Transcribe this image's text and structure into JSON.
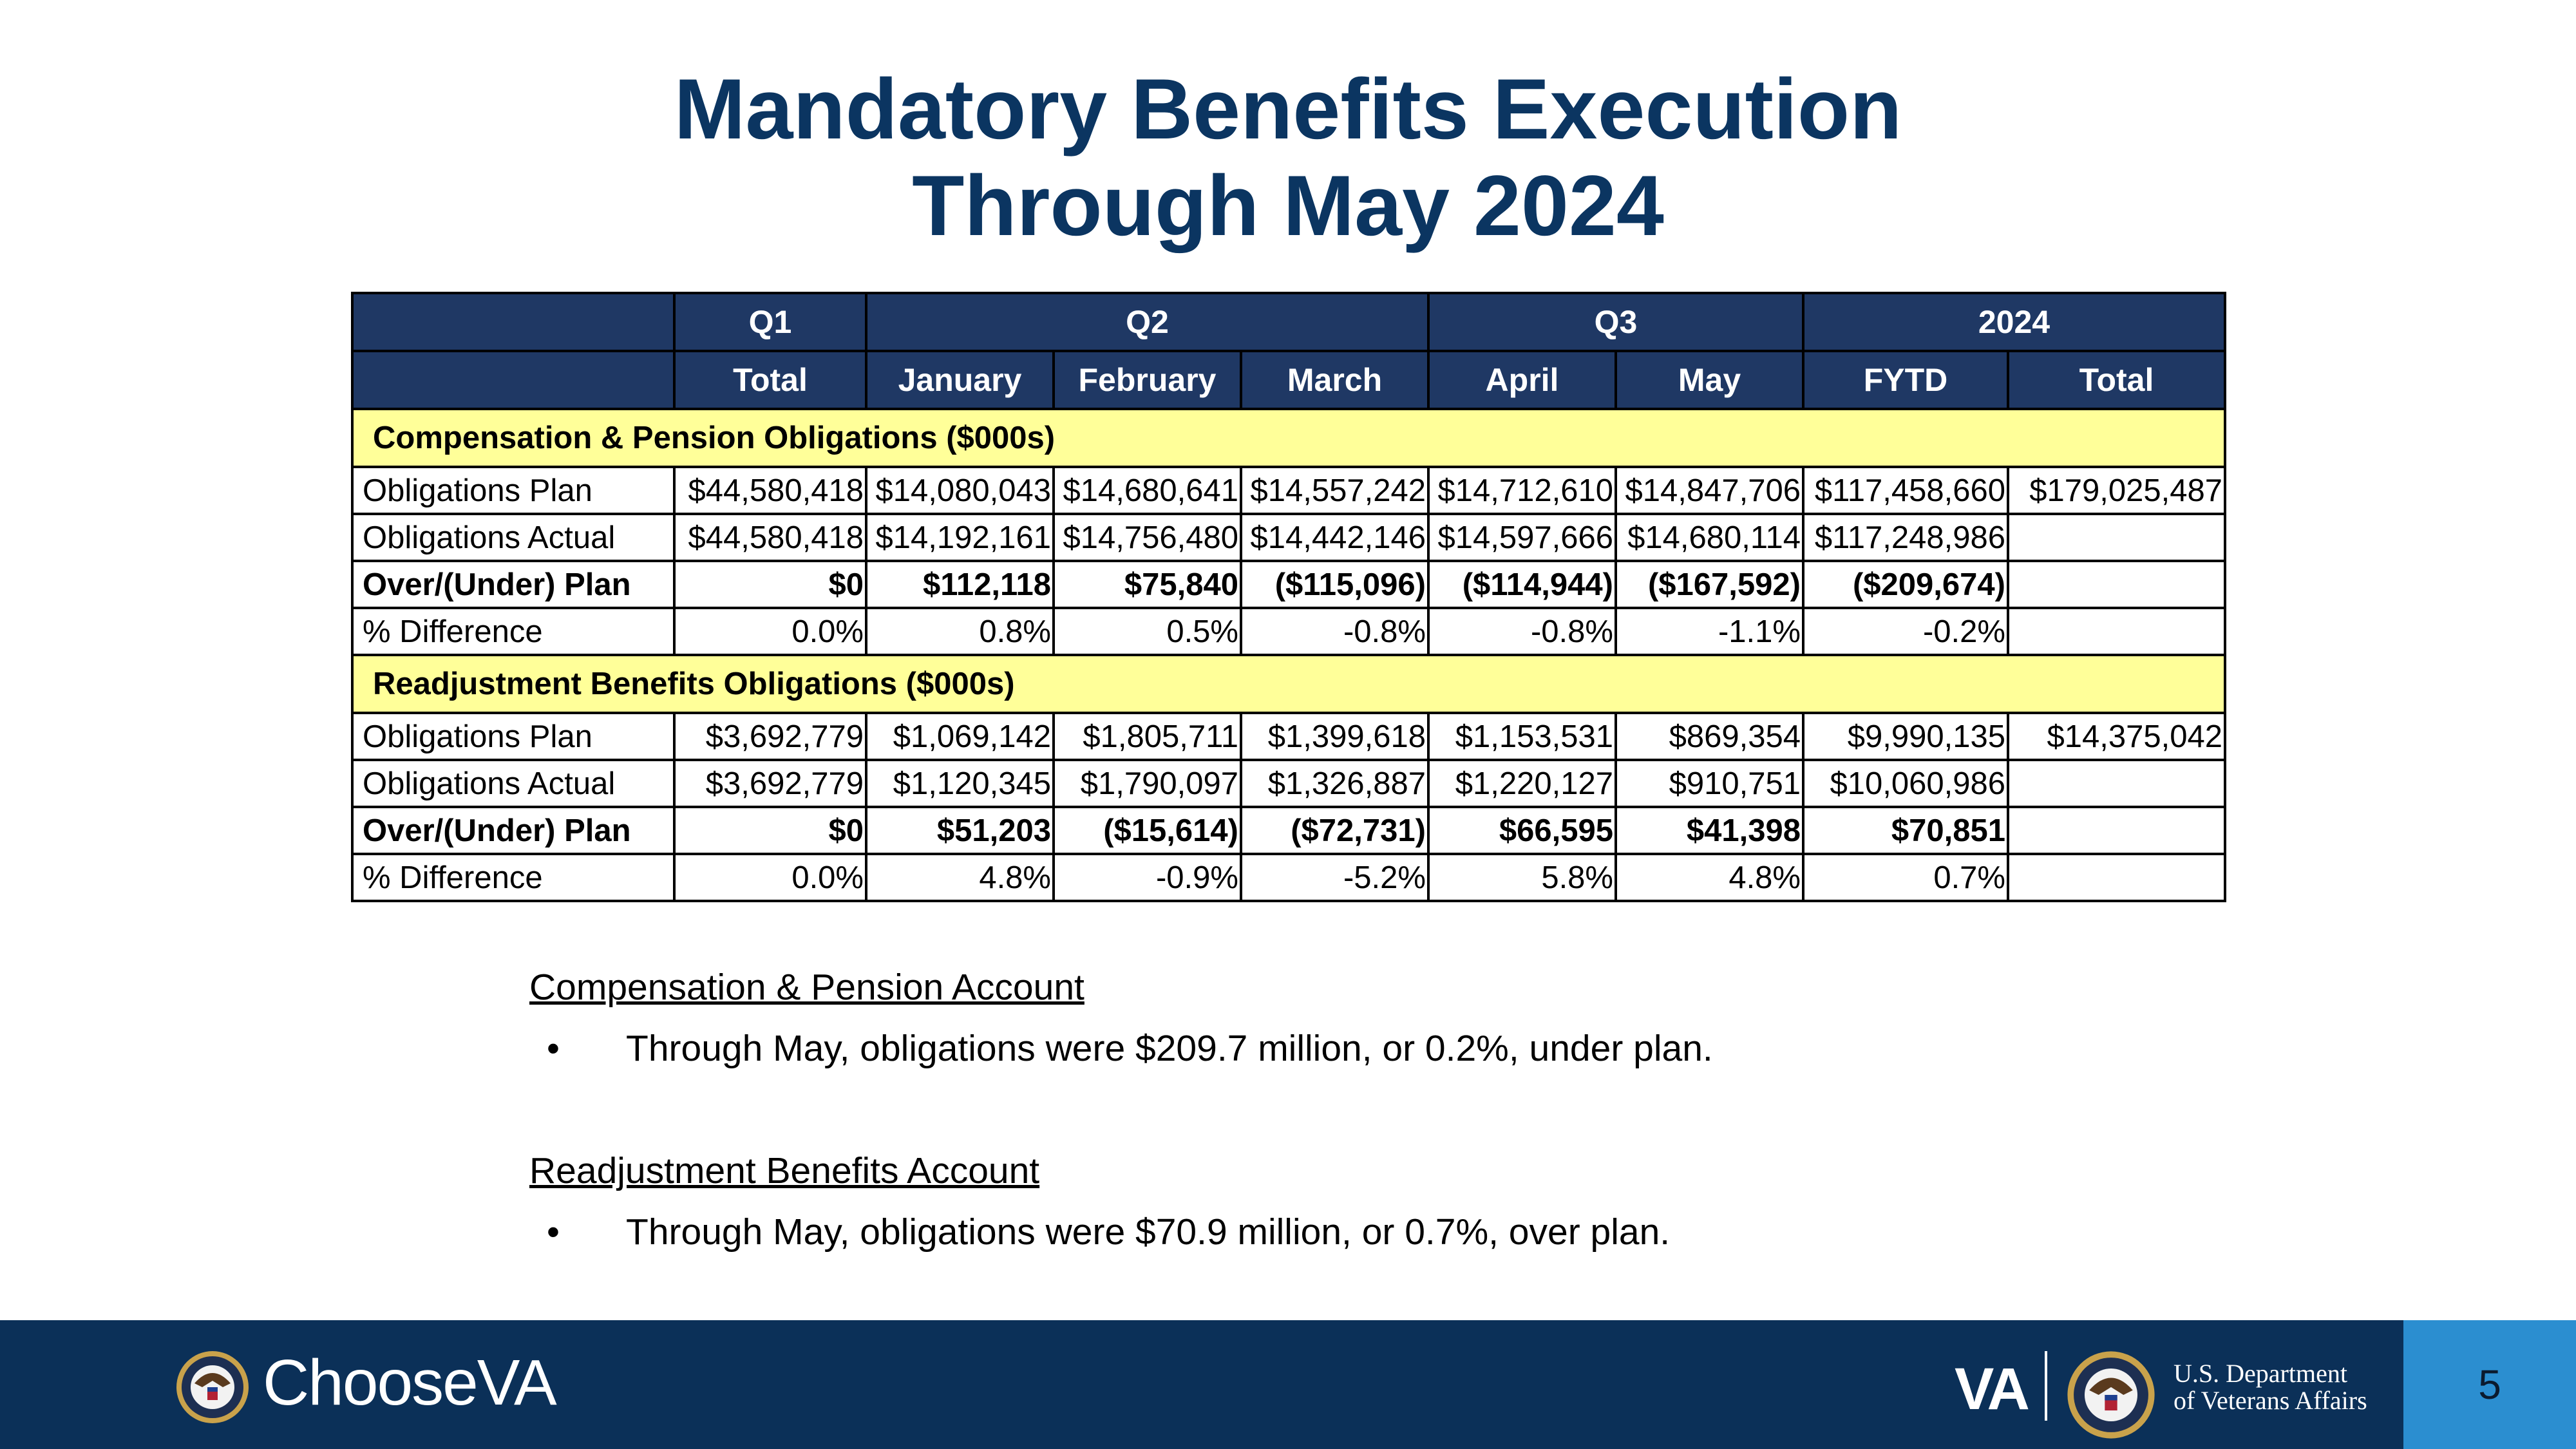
{
  "title": {
    "line1": "Mandatory Benefits Execution",
    "line2": "Through May 2024"
  },
  "table": {
    "header_row1": [
      "",
      "Q1",
      "Q2",
      "Q3",
      "2024"
    ],
    "header_row2": [
      "",
      "Total",
      "January",
      "February",
      "March",
      "April",
      "May",
      "FYTD",
      "Total"
    ],
    "sections": [
      {
        "title": "Compensation & Pension Obligations ($000s)",
        "rows": [
          {
            "label": "Obligations Plan",
            "bold": false,
            "cells": [
              "$44,580,418",
              "$14,080,043",
              "$14,680,641",
              "$14,557,242",
              "$14,712,610",
              "$14,847,706",
              "$117,458,660",
              "$179,025,487"
            ]
          },
          {
            "label": "Obligations Actual",
            "bold": false,
            "cells": [
              "$44,580,418",
              "$14,192,161",
              "$14,756,480",
              "$14,442,146",
              "$14,597,666",
              "$14,680,114",
              "$117,248,986",
              ""
            ]
          },
          {
            "label": "Over/(Under) Plan",
            "bold": true,
            "cells": [
              "$0",
              "$112,118",
              "$75,840",
              "($115,096)",
              "($114,944)",
              "($167,592)",
              "($209,674)",
              ""
            ]
          },
          {
            "label": "% Difference",
            "bold": false,
            "cells": [
              "0.0%",
              "0.8%",
              "0.5%",
              "-0.8%",
              "-0.8%",
              "-1.1%",
              "-0.2%",
              ""
            ]
          }
        ]
      },
      {
        "title": "Readjustment Benefits Obligations ($000s)",
        "rows": [
          {
            "label": "Obligations Plan",
            "bold": false,
            "cells": [
              "$3,692,779",
              "$1,069,142",
              "$1,805,711",
              "$1,399,618",
              "$1,153,531",
              "$869,354",
              "$9,990,135",
              "$14,375,042"
            ]
          },
          {
            "label": "Obligations Actual",
            "bold": false,
            "cells": [
              "$3,692,779",
              "$1,120,345",
              "$1,790,097",
              "$1,326,887",
              "$1,220,127",
              "$910,751",
              "$10,060,986",
              ""
            ]
          },
          {
            "label": "Over/(Under) Plan",
            "bold": true,
            "cells": [
              "$0",
              "$51,203",
              "($15,614)",
              "($72,731)",
              "$66,595",
              "$41,398",
              "$70,851",
              ""
            ]
          },
          {
            "label": "% Difference",
            "bold": false,
            "cells": [
              "0.0%",
              "4.8%",
              "-0.9%",
              "-5.2%",
              "5.8%",
              "4.8%",
              "0.7%",
              ""
            ]
          }
        ]
      }
    ]
  },
  "notes": [
    {
      "heading": "Compensation & Pension Account",
      "bullet": "Through May, obligations were $209.7 million, or 0.2%, under plan."
    },
    {
      "heading": "Readjustment Benefits Account",
      "bullet": "Through May, obligations were $70.9 million, or 0.7%, over plan."
    }
  ],
  "footer": {
    "choose_text": "Choose",
    "choose_va": "VA",
    "va_mark": "VA",
    "dept_line1": "U.S. Department",
    "dept_line2": "of Veterans Affairs",
    "page_number": "5",
    "colors": {
      "bar": "#0b3058",
      "page_box": "#2b8ed0",
      "header": "#1f3864",
      "section": "#ffff99",
      "title": "#0b3561"
    }
  }
}
